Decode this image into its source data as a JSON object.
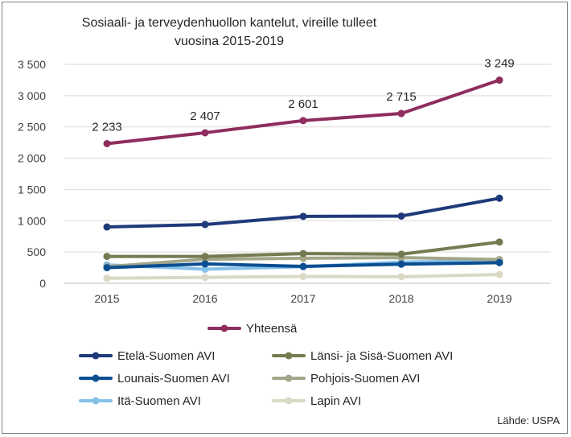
{
  "chart_data": {
    "type": "line",
    "title": "Sosiaali- ja terveydenhuollon kantelut, vireille tulleet vuosina 2015-2019",
    "title_lines": [
      "Sosiaali- ja terveydenhuollon kantelut, vireille tulleet",
      "vuosina 2015-2019"
    ],
    "categories": [
      "2015",
      "2016",
      "2017",
      "2018",
      "2019"
    ],
    "ylim": [
      0,
      3500
    ],
    "yticks": [
      0,
      500,
      1000,
      1500,
      2000,
      2500,
      3000,
      3500
    ],
    "ytick_labels": [
      "0",
      "500",
      "1 000",
      "1 500",
      "2 000",
      "2 500",
      "3 000",
      "3 500"
    ],
    "grid": true,
    "legend_position": "bottom",
    "series": [
      {
        "name": "Yhteensä",
        "color": "#8E2D5E",
        "values": [
          2233,
          2407,
          2601,
          2715,
          3249
        ],
        "data_labels": [
          "2 233",
          "2 407",
          "2 601",
          "2 715",
          "3 249"
        ]
      },
      {
        "name": "Etelä-Suomen AVI",
        "color": "#1F3A7A",
        "values": [
          900,
          940,
          1070,
          1075,
          1360
        ]
      },
      {
        "name": "Länsi- ja Sisä-Suomen AVI",
        "color": "#767A50",
        "values": [
          430,
          430,
          475,
          465,
          660
        ]
      },
      {
        "name": "Lounais-Suomen AVI",
        "color": "#0B4E91",
        "values": [
          250,
          310,
          270,
          305,
          330
        ]
      },
      {
        "name": "Pohjois-Suomen AVI",
        "color": "#A3A78A",
        "values": [
          265,
          385,
          400,
          410,
          380
        ]
      },
      {
        "name": "Itä-Suomen AVI",
        "color": "#86C1EA",
        "values": [
          295,
          225,
          265,
          340,
          360
        ]
      },
      {
        "name": "Lapin AVI",
        "color": "#DAD9C5",
        "values": [
          80,
          95,
          110,
          105,
          140
        ]
      }
    ],
    "source": "Lähde: USPA"
  }
}
